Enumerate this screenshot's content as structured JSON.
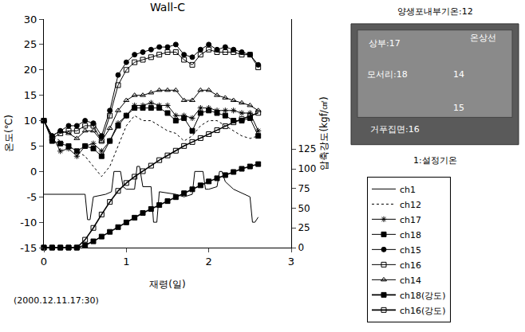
{
  "chart_data": {
    "type": "line",
    "title": "Wall-C",
    "x_label": "재령(일)",
    "y_label": "온도(℃)",
    "y2_label": "압축강도(kgf/㎠)",
    "annotations": [
      "(2000.12.11.17:30)",
      "양생포내부기온:12",
      "상부:17",
      "온상선",
      "모서리:18",
      "14",
      "15",
      "거푸집면:16",
      "1:설정기온"
    ],
    "xlim": [
      0,
      3
    ],
    "xticks": [
      0,
      1,
      2,
      3
    ],
    "ylim": [
      -15,
      30
    ],
    "yticks": [
      -15,
      -10,
      -5,
      0,
      5,
      10,
      15,
      20,
      25,
      30
    ],
    "y2lim": [
      0,
      290
    ],
    "y2ticks": [
      0,
      25,
      50,
      75,
      100,
      125
    ],
    "grid": false,
    "legend": "right",
    "series": [
      {
        "name": "ch1",
        "color": "#000000",
        "marker": "none",
        "line_style": "solid",
        "x": [
          0,
          0.3,
          0.5,
          0.53,
          0.56,
          0.6,
          0.75,
          0.82,
          0.85,
          0.93,
          0.96,
          1.0,
          1.1,
          1.13,
          1.16,
          1.2,
          1.3,
          1.33,
          1.37,
          1.4,
          1.6,
          1.7,
          1.8,
          1.83,
          1.86,
          1.93,
          1.96,
          2.0,
          2.1,
          2.13,
          2.16,
          2.2,
          2.3,
          2.5,
          2.53,
          2.56,
          2.6
        ],
        "values": [
          -4.5,
          -4.5,
          -4.5,
          -9.5,
          -9.5,
          -5,
          -4.5,
          -4,
          0,
          0,
          -3,
          -3.5,
          -3.5,
          1,
          1,
          -3,
          -3,
          -10,
          -10,
          -4,
          -4.5,
          -5,
          -4.5,
          0,
          0,
          0,
          -3.5,
          -3.5,
          -3,
          0,
          0,
          -2,
          -3.5,
          -5,
          -10,
          -10,
          -9
        ]
      },
      {
        "name": "ch12",
        "color": "#000000",
        "marker": "none",
        "line_style": "dot",
        "x": [
          0,
          0.1,
          0.2,
          0.3,
          0.4,
          0.5,
          0.6,
          0.7,
          0.8,
          0.9,
          1.0,
          1.1,
          1.2,
          1.3,
          1.4,
          1.5,
          1.6,
          1.7,
          1.8,
          1.9,
          2.0,
          2.1,
          2.2,
          2.3,
          2.4,
          2.5,
          2.6
        ],
        "values": [
          10,
          7,
          6,
          5,
          4,
          3,
          1,
          -1,
          1,
          5,
          9,
          11,
          10,
          10,
          9,
          8,
          7.5,
          6,
          7,
          9,
          10,
          10,
          9,
          8,
          7,
          6.5,
          7
        ]
      },
      {
        "name": "ch17",
        "color": "#000000",
        "marker": "asterisk-open",
        "line_style": "solid",
        "x": [
          0,
          0.1,
          0.2,
          0.3,
          0.4,
          0.5,
          0.6,
          0.7,
          0.8,
          0.9,
          1.0,
          1.1,
          1.2,
          1.3,
          1.4,
          1.5,
          1.6,
          1.7,
          1.8,
          1.9,
          2.0,
          2.1,
          2.2,
          2.3,
          2.4,
          2.5,
          2.6
        ],
        "values": [
          10,
          7,
          4,
          4.5,
          3,
          5,
          5.5,
          4,
          6,
          9.5,
          11,
          13,
          13,
          13.5,
          13,
          13,
          11,
          11,
          10.5,
          12.5,
          12.5,
          12,
          12,
          12,
          11.5,
          11.5,
          8
        ]
      },
      {
        "name": "ch18",
        "color": "#000000",
        "marker": "square",
        "line_style": "solid",
        "x": [
          0,
          0.1,
          0.2,
          0.3,
          0.4,
          0.5,
          0.6,
          0.7,
          0.8,
          0.9,
          1.0,
          1.1,
          1.2,
          1.3,
          1.4,
          1.5,
          1.6,
          1.7,
          1.8,
          1.9,
          2.0,
          2.1,
          2.2,
          2.3,
          2.4,
          2.5,
          2.6
        ],
        "values": [
          10,
          6,
          5.5,
          5,
          4,
          5,
          4.5,
          3,
          6,
          9,
          11,
          12.5,
          12.5,
          12.5,
          12.5,
          11.5,
          10,
          10.5,
          8,
          11.5,
          12,
          11.5,
          11,
          10,
          10,
          10.5,
          7
        ]
      },
      {
        "name": "ch15",
        "color": "#000000",
        "marker": "circle",
        "line_style": "solid",
        "x": [
          0,
          0.1,
          0.2,
          0.3,
          0.4,
          0.5,
          0.6,
          0.7,
          0.8,
          0.9,
          1.0,
          1.1,
          1.2,
          1.3,
          1.4,
          1.5,
          1.6,
          1.7,
          1.8,
          1.9,
          2.0,
          2.1,
          2.2,
          2.3,
          2.4,
          2.5,
          2.6
        ],
        "values": [
          10,
          7,
          8,
          9,
          9,
          10,
          9.5,
          7,
          12,
          19,
          21.5,
          23,
          23.5,
          24,
          24.5,
          24.5,
          25,
          23,
          22.5,
          24,
          25,
          24,
          24.5,
          24,
          23.5,
          23,
          21
        ]
      },
      {
        "name": "ch16",
        "color": "#000000",
        "marker": "square-open",
        "line_style": "solid",
        "x": [
          0,
          0.1,
          0.2,
          0.3,
          0.4,
          0.5,
          0.6,
          0.7,
          0.8,
          0.9,
          1.0,
          1.1,
          1.2,
          1.3,
          1.4,
          1.5,
          1.6,
          1.7,
          1.8,
          1.9,
          2.0,
          2.1,
          2.2,
          2.3,
          2.4,
          2.5,
          2.6
        ],
        "values": [
          10,
          6.5,
          7.5,
          8,
          8,
          9,
          9,
          6,
          11,
          17,
          20,
          21.5,
          22,
          22.5,
          23,
          23.5,
          23.5,
          22,
          21,
          23,
          24,
          23.5,
          23.5,
          23.5,
          23,
          23,
          20.5
        ]
      },
      {
        "name": "ch14",
        "color": "#000000",
        "marker": "triangle-up-open",
        "line_style": "solid",
        "x": [
          0,
          0.1,
          0.2,
          0.3,
          0.4,
          0.5,
          0.6,
          0.7,
          0.8,
          0.9,
          1.0,
          1.1,
          1.2,
          1.3,
          1.4,
          1.5,
          1.6,
          1.7,
          1.8,
          1.9,
          2.0,
          2.1,
          2.2,
          2.3,
          2.4,
          2.5,
          2.6
        ],
        "values": [
          10,
          7,
          8,
          7.5,
          6.5,
          8,
          8,
          6,
          8.5,
          12,
          14,
          15,
          15,
          15.5,
          16,
          16,
          16,
          14,
          14,
          16,
          16,
          15,
          14.5,
          14,
          13.5,
          13,
          12
        ]
      },
      {
        "name": "ch18(강도)",
        "color": "#000000",
        "marker": "square",
        "line_style": "solid",
        "axis": "y2",
        "x": [
          0,
          0.1,
          0.2,
          0.3,
          0.4,
          0.5,
          0.6,
          0.7,
          0.8,
          0.9,
          1.0,
          1.1,
          1.2,
          1.3,
          1.4,
          1.5,
          1.6,
          1.7,
          1.8,
          1.9,
          2.0,
          2.1,
          2.2,
          2.3,
          2.4,
          2.5,
          2.6
        ],
        "values": [
          0,
          0,
          0,
          0,
          0,
          3,
          8,
          14,
          20,
          26,
          32,
          38,
          44,
          49,
          54,
          59,
          64,
          69,
          74,
          79,
          84,
          88,
          92,
          96,
          100,
          103,
          106
        ]
      },
      {
        "name": "ch16(강도)",
        "color": "#000000",
        "marker": "square-open",
        "line_style": "solid",
        "axis": "y2",
        "x": [
          0,
          0.1,
          0.2,
          0.3,
          0.4,
          0.5,
          0.6,
          0.7,
          0.8,
          0.9,
          1.0,
          1.1,
          1.2,
          1.3,
          1.4,
          1.5,
          1.6,
          1.7,
          1.8,
          1.9,
          2.0,
          2.1,
          2.2,
          2.3,
          2.4,
          2.5,
          2.6
        ],
        "values": [
          0,
          0,
          0,
          0,
          0,
          10,
          25,
          42,
          58,
          72,
          82,
          90,
          97,
          104,
          111,
          117,
          123,
          129,
          134,
          139,
          144,
          149,
          154,
          159,
          163,
          167,
          171
        ]
      }
    ]
  }
}
